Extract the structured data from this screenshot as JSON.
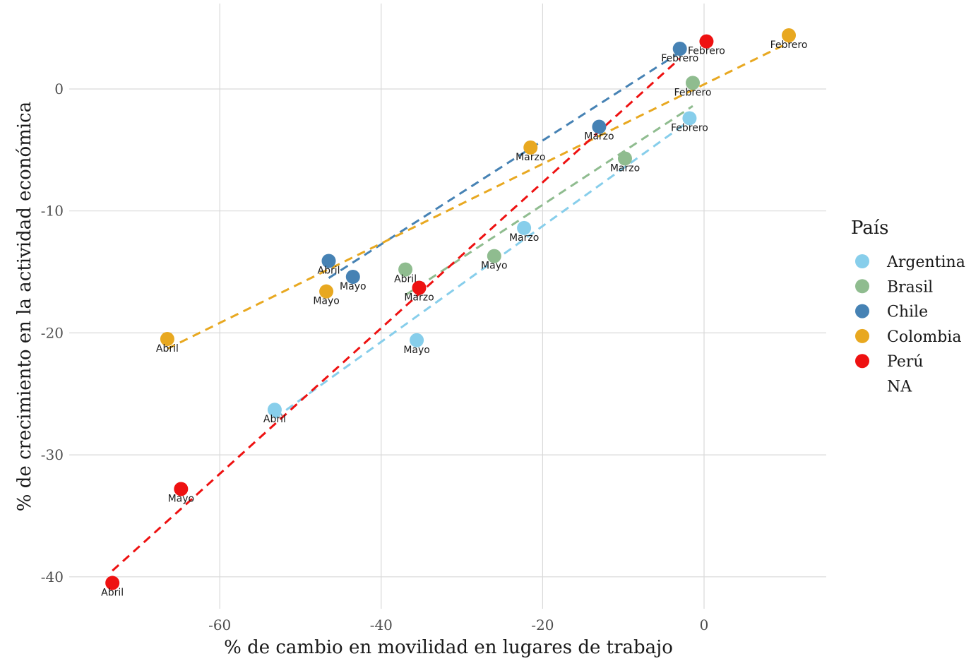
{
  "chart_data": {
    "type": "scatter",
    "xlabel": "% de cambio en movilidad en lugares de trabajo",
    "ylabel": "% de crecimiento en la actividad económica",
    "xlim": [
      -74,
      15
    ],
    "ylim": [
      -41.5,
      7
    ],
    "x_ticks": [
      -60,
      -40,
      -20,
      0
    ],
    "y_ticks": [
      -40,
      -30,
      -20,
      -10,
      0
    ],
    "x_tick_labels": [
      "-60",
      "-40",
      "-20",
      "0"
    ],
    "y_tick_labels": [
      "-40",
      "-30",
      "-20",
      "-10",
      "0"
    ],
    "grid": true,
    "trend_lines": "dashed",
    "legend": {
      "title": "País",
      "position": "right",
      "items": [
        "Argentina",
        "Brasil",
        "Chile",
        "Colombia",
        "Perú",
        "NA"
      ]
    },
    "series": [
      {
        "name": "Argentina",
        "color": "#87CEEB",
        "points": [
          {
            "label": "Febrero",
            "x": -1.8,
            "y": -2.4
          },
          {
            "label": "Marzo",
            "x": -22.3,
            "y": -11.4
          },
          {
            "label": "Abril",
            "x": -53.2,
            "y": -26.3
          },
          {
            "label": "Mayo",
            "x": -35.6,
            "y": -20.6
          }
        ],
        "trend": {
          "x": [
            -53.2,
            -1.8
          ],
          "y": [
            -27.0,
            -2.6
          ]
        }
      },
      {
        "name": "Brasil",
        "color": "#8FBC8F",
        "points": [
          {
            "label": "Febrero",
            "x": -1.4,
            "y": 0.5
          },
          {
            "label": "Marzo",
            "x": -9.8,
            "y": -5.7
          },
          {
            "label": "Abril",
            "x": -37.0,
            "y": -14.8
          },
          {
            "label": "Mayo",
            "x": -26.0,
            "y": -13.7
          }
        ],
        "trend": {
          "x": [
            -37.0,
            -1.4
          ],
          "y": [
            -16.9,
            -1.4
          ]
        }
      },
      {
        "name": "Chile",
        "color": "#4682B4",
        "points": [
          {
            "label": "Febrero",
            "x": -3.0,
            "y": 3.3
          },
          {
            "label": "Marzo",
            "x": -13.0,
            "y": -3.1
          },
          {
            "label": "Abril",
            "x": -46.5,
            "y": -14.1
          },
          {
            "label": "Mayo",
            "x": -43.5,
            "y": -15.4
          }
        ],
        "trend": {
          "x": [
            -46.5,
            -3.0
          ],
          "y": [
            -15.5,
            3.0
          ]
        }
      },
      {
        "name": "Colombia",
        "color": "#E8A820",
        "points": [
          {
            "label": "Febrero",
            "x": 10.5,
            "y": 4.4
          },
          {
            "label": "Marzo",
            "x": -21.5,
            "y": -4.8
          },
          {
            "label": "Abril",
            "x": -66.5,
            "y": -20.5
          },
          {
            "label": "Mayo",
            "x": -46.8,
            "y": -16.6
          }
        ],
        "trend": {
          "x": [
            -66.5,
            10.5
          ],
          "y": [
            -21.3,
            3.8
          ]
        }
      },
      {
        "name": "Perú",
        "color": "#EE1111",
        "points": [
          {
            "label": "Febrero",
            "x": 0.3,
            "y": 3.9
          },
          {
            "label": "Marzo",
            "x": -35.3,
            "y": -16.3
          },
          {
            "label": "Abril",
            "x": -73.3,
            "y": -40.5
          },
          {
            "label": "Mayo",
            "x": -64.8,
            "y": -32.8
          }
        ],
        "trend": {
          "x": [
            -73.3,
            -3.0
          ],
          "y": [
            -39.5,
            2.5
          ]
        }
      }
    ]
  }
}
